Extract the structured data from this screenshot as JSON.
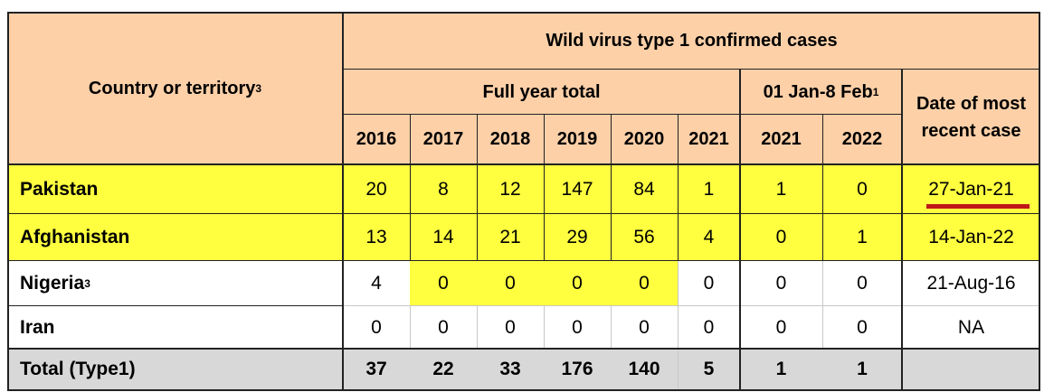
{
  "header": {
    "country_label": "Country or territory",
    "country_sup": "3",
    "main_title": "Wild virus type 1 confirmed cases",
    "full_year_label": "Full year total",
    "period_label": "01 Jan-8 Feb",
    "period_sup": "1",
    "recent_line1": "Date of most",
    "recent_line2": "recent case",
    "years": [
      "2016",
      "2017",
      "2018",
      "2019",
      "2020",
      "2021",
      "2021",
      "2022"
    ]
  },
  "rows": [
    {
      "country": "Pakistan",
      "sup": "",
      "values": [
        "20",
        "8",
        "12",
        "147",
        "84",
        "1",
        "1",
        "0"
      ],
      "date": "27-Jan-21"
    },
    {
      "country": "Afghanistan",
      "sup": "",
      "values": [
        "13",
        "14",
        "21",
        "29",
        "56",
        "4",
        "0",
        "1"
      ],
      "date": "14-Jan-22"
    },
    {
      "country": "Nigeria",
      "sup": "3",
      "values": [
        "4",
        "0",
        "0",
        "0",
        "0",
        "0",
        "0",
        "0"
      ],
      "date": "21-Aug-16"
    },
    {
      "country": "Iran",
      "sup": "",
      "values": [
        "0",
        "0",
        "0",
        "0",
        "0",
        "0",
        "0",
        "0"
      ],
      "date": "NA"
    }
  ],
  "total": {
    "label": "Total (Type1)",
    "values": [
      "37",
      "22",
      "33",
      "176",
      "140",
      "5",
      "1",
      "1"
    ],
    "date": ""
  },
  "colors": {
    "header_fill": "#fdd0a8",
    "highlight": "#ffff40",
    "total_fill": "#d8d8d8",
    "underline": "#c01818"
  },
  "highlight_cells": {
    "row_0": "all",
    "row_1": "all",
    "row_2": [
      "2017",
      "2018",
      "2019",
      "2020"
    ]
  }
}
